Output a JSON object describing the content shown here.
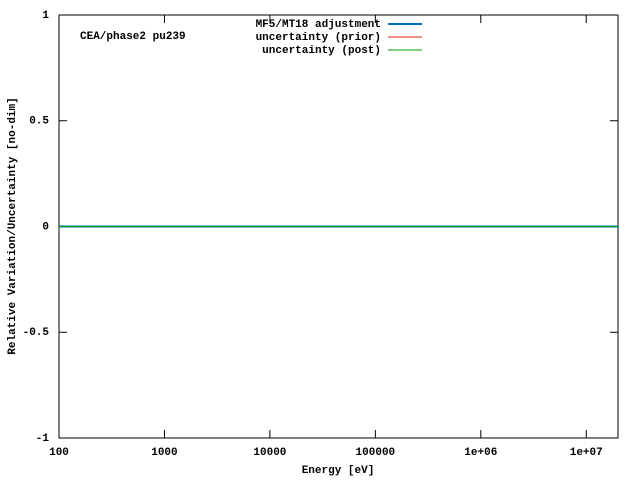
{
  "chart_data": {
    "type": "line",
    "annotation": "CEA/phase2 pu239",
    "x_label": "Energy [eV]",
    "y_label": "Relative Variation/Uncertainty [no-dim]",
    "x": [
      100,
      20000000
    ],
    "series": [
      {
        "name": "MF5/MT18 adjustment",
        "color": "#0072bd",
        "width": 2,
        "values": [
          0,
          0
        ]
      },
      {
        "name": "uncertainty (prior)",
        "color": "#e0201b",
        "width": 1,
        "values": [
          0,
          0
        ]
      },
      {
        "name": "uncertainty (post)",
        "color": "#00a000",
        "width": 1,
        "values": [
          0,
          0
        ]
      }
    ],
    "xlog": true,
    "xlim": [
      100,
      20000000
    ],
    "xticks": [
      100,
      1000,
      10000,
      100000,
      {
        "value": 1000000,
        "label": "1e+06"
      },
      {
        "value": 10000000,
        "label": "1e+07"
      }
    ],
    "ylim": [
      -1,
      1
    ],
    "yticks": [
      -1,
      -0.5,
      0,
      0.5,
      1
    ],
    "legend": "top-center",
    "grid": false
  }
}
